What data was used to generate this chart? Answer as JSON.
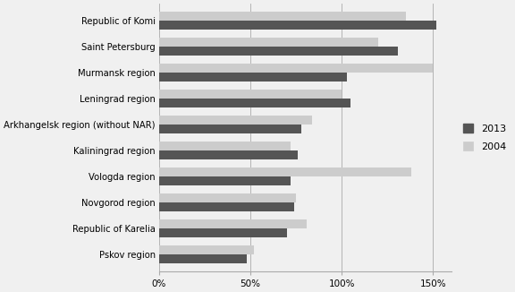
{
  "categories": [
    "Republic of Komi",
    "Saint Petersburg",
    "Murmansk region",
    "Leningrad region",
    "Arkhangelsk region (without NAR)",
    "Kaliningrad region",
    "Vologda region",
    "Novgorod region",
    "Republic of Karelia",
    "Pskov region"
  ],
  "values_2013": [
    152,
    131,
    103,
    105,
    78,
    76,
    72,
    74,
    70,
    48
  ],
  "values_2004": [
    135,
    120,
    150,
    100,
    84,
    72,
    138,
    75,
    81,
    52
  ],
  "color_2013": "#555555",
  "color_2004": "#cccccc",
  "xlim": [
    0,
    160
  ],
  "xticks": [
    0,
    50,
    100,
    150
  ],
  "xticklabels": [
    "0%",
    "50%",
    "100%",
    "150%"
  ],
  "legend_labels": [
    "2013",
    "2004"
  ],
  "bar_height": 0.36,
  "figsize": [
    5.76,
    3.26
  ],
  "dpi": 100,
  "fontsize_labels": 7.2,
  "fontsize_ticks": 7.5,
  "fontsize_legend": 8,
  "bg_color": "#f0f0f0"
}
